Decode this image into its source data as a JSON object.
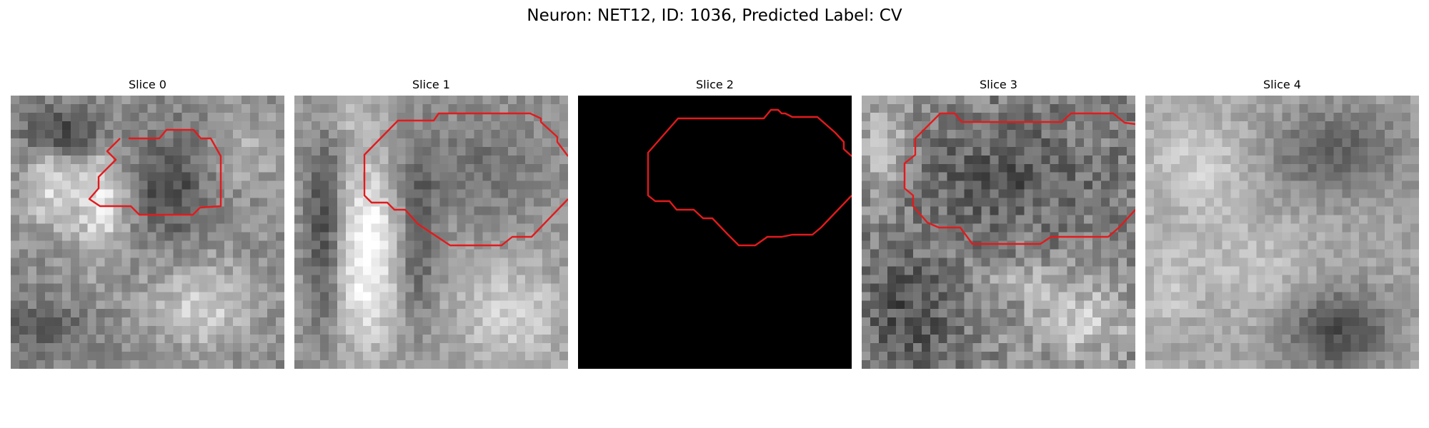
{
  "figure": {
    "title": "Neuron: NET12, ID: 1036, Predicted Label: CV"
  },
  "panels": [
    {
      "title": "Slice 0",
      "image": "grayscale-em-patch",
      "contour": true
    },
    {
      "title": "Slice 1",
      "image": "grayscale-em-patch",
      "contour": true
    },
    {
      "title": "Slice 2",
      "image": "black-mask",
      "contour": true
    },
    {
      "title": "Slice 3",
      "image": "grayscale-em-patch",
      "contour": true
    },
    {
      "title": "Slice 4",
      "image": "grayscale-em-patch",
      "contour": false
    }
  ],
  "colors": {
    "contour": "#e31a1c",
    "background": "#ffffff"
  }
}
